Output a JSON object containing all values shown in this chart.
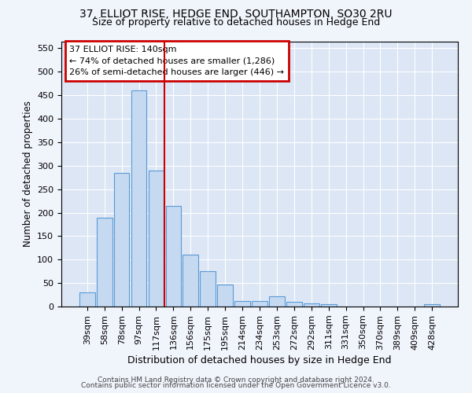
{
  "title1": "37, ELLIOT RISE, HEDGE END, SOUTHAMPTON, SO30 2RU",
  "title2": "Size of property relative to detached houses in Hedge End",
  "xlabel": "Distribution of detached houses by size in Hedge End",
  "ylabel": "Number of detached properties",
  "categories": [
    "39sqm",
    "58sqm",
    "78sqm",
    "97sqm",
    "117sqm",
    "136sqm",
    "156sqm",
    "175sqm",
    "195sqm",
    "214sqm",
    "234sqm",
    "253sqm",
    "272sqm",
    "292sqm",
    "311sqm",
    "331sqm",
    "350sqm",
    "370sqm",
    "389sqm",
    "409sqm",
    "428sqm"
  ],
  "values": [
    30,
    190,
    285,
    460,
    290,
    215,
    110,
    75,
    47,
    12,
    12,
    22,
    10,
    6,
    5,
    0,
    0,
    0,
    0,
    0,
    5
  ],
  "bar_color": "#c5d9f1",
  "bar_edge_color": "#5b9bd5",
  "annotation_line1": "37 ELLIOT RISE: 140sqm",
  "annotation_line2": "← 74% of detached houses are smaller (1,286)",
  "annotation_line3": "26% of semi-detached houses are larger (446) →",
  "annotation_box_color": "#ffffff",
  "annotation_box_edge": "#cc0000",
  "ref_line_color": "#cc0000",
  "ref_line_x": 4.5,
  "ylim": [
    0,
    565
  ],
  "yticks": [
    0,
    50,
    100,
    150,
    200,
    250,
    300,
    350,
    400,
    450,
    500,
    550
  ],
  "footer1": "Contains HM Land Registry data © Crown copyright and database right 2024.",
  "footer2": "Contains public sector information licensed under the Open Government Licence v3.0.",
  "fig_bg_color": "#f0f4fb",
  "plot_bg_color": "#dce6f5"
}
